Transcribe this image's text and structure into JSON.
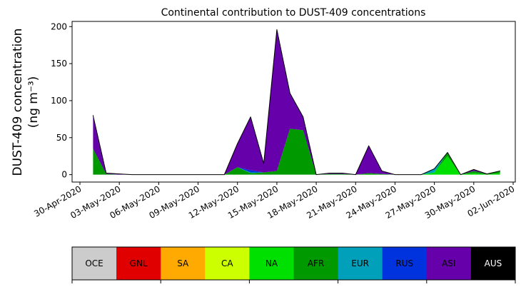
{
  "chart_data": {
    "type": "stacked-area",
    "title": "Continental contribution to DUST-409 concentrations",
    "ylabel": [
      "DUST-409 concentration",
      "(ng m⁻³)"
    ],
    "x": [
      "01-May-2020",
      "02-May-2020",
      "03-May-2020",
      "04-May-2020",
      "05-May-2020",
      "06-May-2020",
      "07-May-2020",
      "08-May-2020",
      "09-May-2020",
      "10-May-2020",
      "11-May-2020",
      "12-May-2020",
      "13-May-2020",
      "14-May-2020",
      "15-May-2020",
      "16-May-2020",
      "17-May-2020",
      "18-May-2020",
      "19-May-2020",
      "20-May-2020",
      "21-May-2020",
      "22-May-2020",
      "23-May-2020",
      "24-May-2020",
      "25-May-2020",
      "26-May-2020",
      "27-May-2020",
      "28-May-2020",
      "29-May-2020",
      "30-May-2020",
      "31-May-2020",
      "01-Jun-2020"
    ],
    "xlim": [
      "30-Apr-2020",
      "02-Jun-2020"
    ],
    "xticks": [
      "30-Apr-2020",
      "03-May-2020",
      "06-May-2020",
      "09-May-2020",
      "12-May-2020",
      "15-May-2020",
      "18-May-2020",
      "21-May-2020",
      "24-May-2020",
      "27-May-2020",
      "30-May-2020",
      "02-Jun-2020"
    ],
    "ylim": [
      -10,
      207
    ],
    "yticks": [
      0,
      50,
      100,
      150,
      200
    ],
    "series": [
      {
        "name": "OCE",
        "color": "#cccccc",
        "values": [
          0,
          0,
          0,
          0,
          0,
          0,
          0,
          0,
          0,
          0,
          0,
          0,
          0,
          0,
          0,
          0,
          0,
          0,
          0,
          0,
          0,
          0,
          0,
          0,
          0,
          0,
          0,
          0,
          0,
          0,
          0,
          0
        ]
      },
      {
        "name": "GNL",
        "color": "#e00000",
        "values": [
          0,
          0,
          0,
          0,
          0,
          0,
          0,
          0,
          0,
          0,
          0,
          0,
          0,
          0,
          0,
          0,
          0,
          0,
          0,
          0,
          0,
          0,
          0,
          0,
          0,
          0,
          0,
          0,
          0,
          0,
          0,
          0
        ]
      },
      {
        "name": "SA",
        "color": "#ffaa00",
        "values": [
          0,
          0,
          0,
          0,
          0,
          0,
          0,
          0,
          0,
          0,
          0,
          0,
          0,
          0,
          0,
          0,
          0,
          0,
          0,
          0,
          0,
          0,
          0,
          0,
          0,
          0,
          0,
          0,
          0,
          0,
          0,
          0
        ]
      },
      {
        "name": "CA",
        "color": "#ccff00",
        "values": [
          0,
          0,
          0,
          0,
          0,
          0,
          0,
          0,
          0,
          0,
          0,
          0,
          0,
          0,
          0,
          0,
          0,
          0,
          0,
          0,
          0,
          0,
          0,
          0,
          0,
          0,
          0,
          0,
          0,
          0,
          0,
          0
        ]
      },
      {
        "name": "NA",
        "color": "#00e000",
        "values": [
          0,
          0,
          0,
          0,
          0,
          0,
          0,
          0,
          0,
          0,
          0,
          0,
          0,
          0,
          0,
          0,
          0,
          0,
          0,
          0,
          0,
          0,
          0,
          0,
          0,
          0,
          3,
          25,
          0,
          2,
          0,
          2
        ]
      },
      {
        "name": "AFR",
        "color": "#009900",
        "values": [
          35,
          1,
          0,
          0,
          0,
          0,
          0,
          0,
          0,
          0,
          0,
          10,
          2,
          3,
          5,
          62,
          60,
          0,
          1,
          1,
          0,
          2,
          1,
          0,
          0,
          0,
          0,
          5,
          0,
          3,
          1,
          3
        ]
      },
      {
        "name": "EUR",
        "color": "#00a0bb",
        "values": [
          0,
          0,
          0,
          0,
          0,
          0,
          0,
          0,
          0,
          0,
          0,
          0,
          1,
          0,
          0,
          0,
          0,
          0,
          0,
          0,
          0,
          0,
          0,
          0,
          0,
          0,
          5,
          0,
          0,
          0,
          0,
          0
        ]
      },
      {
        "name": "RUS",
        "color": "#0033dd",
        "values": [
          0,
          0,
          0,
          0,
          0,
          0,
          0,
          0,
          0,
          0,
          0,
          0,
          3,
          0,
          0,
          0,
          0,
          0,
          0,
          0,
          0,
          0,
          0,
          0,
          0,
          0,
          0,
          0,
          0,
          0,
          0,
          0
        ]
      },
      {
        "name": "ASI",
        "color": "#6600aa",
        "values": [
          45,
          1,
          1,
          0,
          0,
          0,
          0,
          0,
          0,
          0,
          0,
          32,
          72,
          12,
          191,
          48,
          18,
          0,
          1,
          1,
          0,
          37,
          4,
          0,
          0,
          0,
          0,
          0,
          0,
          2,
          0,
          0
        ]
      },
      {
        "name": "AUS",
        "color": "#000000",
        "values": [
          0,
          0,
          0,
          0,
          0,
          0,
          0,
          0,
          0,
          0,
          0,
          0,
          0,
          0,
          0,
          0,
          0,
          0,
          0,
          0,
          0,
          0,
          0,
          0,
          0,
          0,
          0,
          0,
          0,
          0,
          0,
          0
        ]
      }
    ]
  }
}
